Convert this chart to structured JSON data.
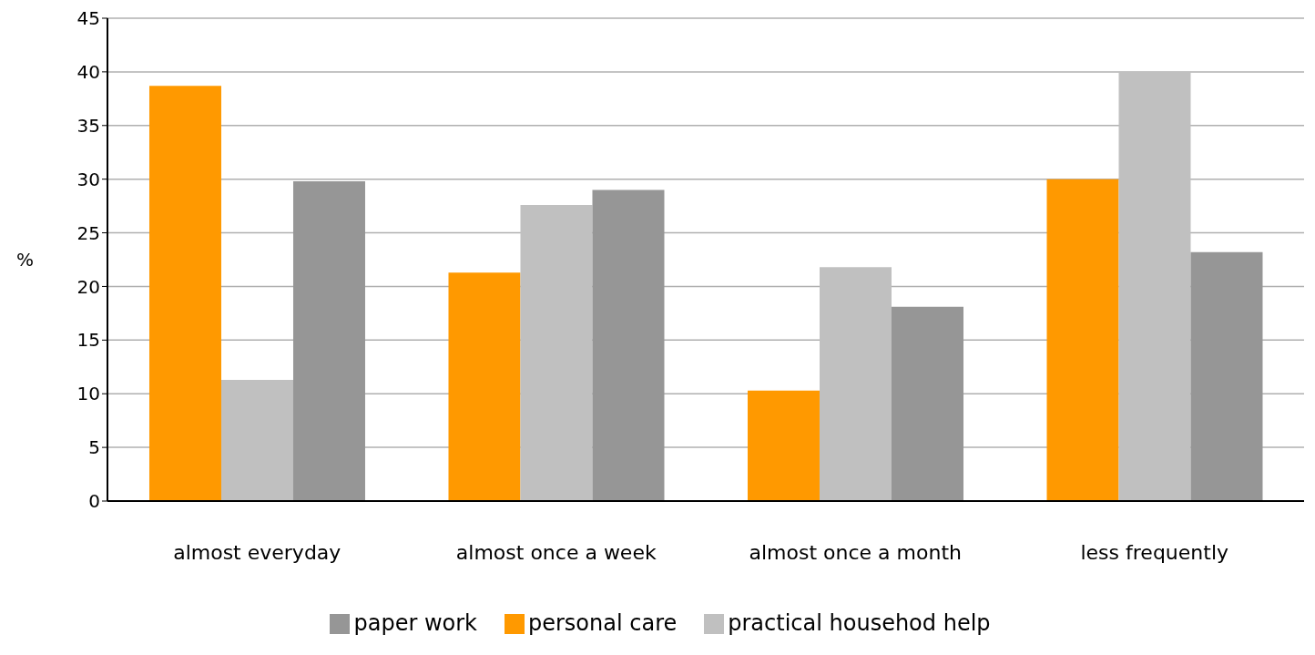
{
  "chart_data": {
    "type": "bar",
    "ylabel": "%",
    "categories": [
      "almost everyday",
      "almost once a week",
      "almost once a month",
      "less frequently"
    ],
    "series": [
      {
        "name": "personal care",
        "color": "#ff9900",
        "values": [
          38.7,
          21.3,
          10.3,
          30.0
        ]
      },
      {
        "name": "practical househod help",
        "color": "#c0c0c0",
        "values": [
          11.3,
          27.6,
          21.8,
          40.0
        ]
      },
      {
        "name": "paper work",
        "color": "#969696",
        "values": [
          29.8,
          29.0,
          18.1,
          23.2
        ]
      }
    ],
    "ylim": [
      0,
      45
    ],
    "yticks": [
      0,
      5,
      10,
      15,
      20,
      25,
      30,
      35,
      40,
      45
    ],
    "grid": "y",
    "legend": "bottom"
  }
}
